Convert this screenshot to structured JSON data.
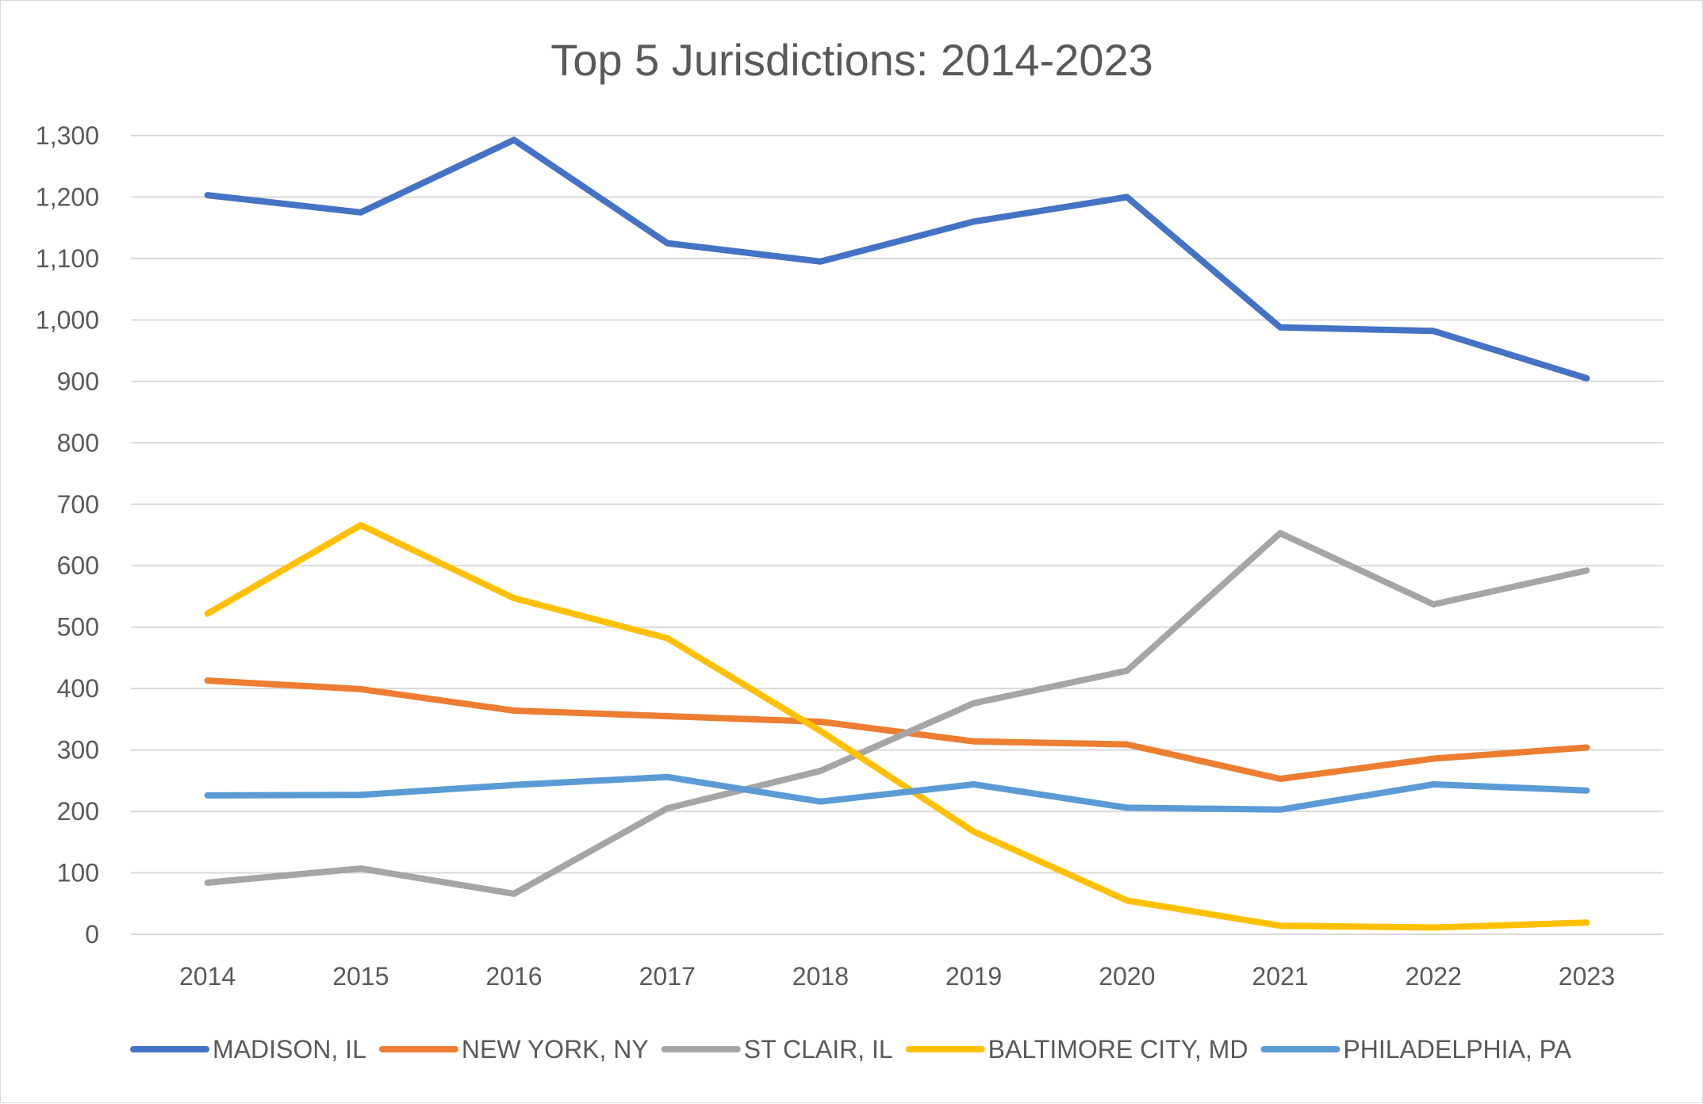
{
  "chart_data": {
    "type": "line",
    "title": "Top 5 Jurisdictions: 2014-2023",
    "xlabel": "",
    "ylabel": "",
    "categories": [
      "2014",
      "2015",
      "2016",
      "2017",
      "2018",
      "2019",
      "2020",
      "2021",
      "2022",
      "2023"
    ],
    "ylim": [
      0,
      1300
    ],
    "yticks": [
      0,
      100,
      200,
      300,
      400,
      500,
      600,
      700,
      800,
      900,
      1000,
      1100,
      1200,
      1300
    ],
    "ytick_labels": [
      "0",
      "100",
      "200",
      "300",
      "400",
      "500",
      "600",
      "700",
      "800",
      "900",
      "1,000",
      "1,100",
      "1,200",
      "1,300"
    ],
    "grid": true,
    "legend_position": "bottom",
    "series": [
      {
        "name": "MADISON, IL",
        "color": "#4472C4",
        "values": [
          1203,
          1175,
          1293,
          1125,
          1095,
          1160,
          1200,
          988,
          982,
          905
        ]
      },
      {
        "name": "NEW YORK, NY",
        "color": "#ED7D31",
        "values": [
          413,
          399,
          364,
          355,
          346,
          314,
          309,
          253,
          286,
          304
        ]
      },
      {
        "name": "ST CLAIR, IL",
        "color": "#A5A5A5",
        "values": [
          84,
          107,
          66,
          205,
          266,
          376,
          429,
          653,
          537,
          592
        ]
      },
      {
        "name": "BALTIMORE CITY, MD",
        "color": "#FFC000",
        "values": [
          522,
          666,
          547,
          482,
          331,
          167,
          55,
          14,
          11,
          19
        ]
      },
      {
        "name": "PHILADELPHIA, PA",
        "color": "#5B9BD5",
        "values": [
          226,
          227,
          243,
          256,
          216,
          244,
          206,
          203,
          244,
          234
        ]
      }
    ]
  }
}
